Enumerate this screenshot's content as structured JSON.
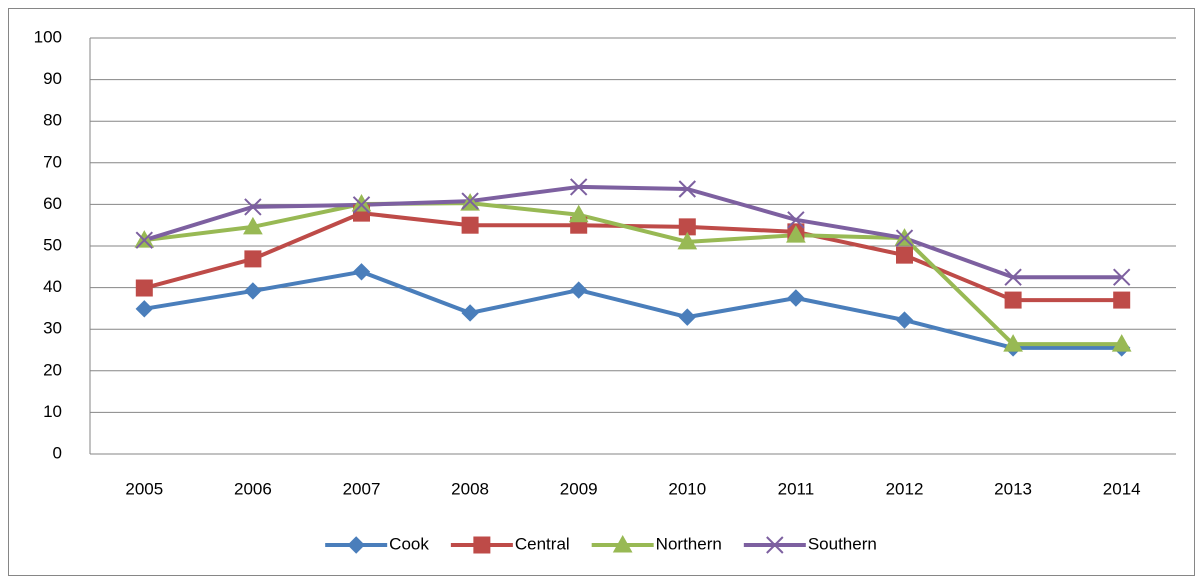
{
  "chart_data": {
    "type": "line",
    "categories": [
      "2005",
      "2006",
      "2007",
      "2008",
      "2009",
      "2010",
      "2011",
      "2012",
      "2013",
      "2014"
    ],
    "series": [
      {
        "name": "Cook",
        "color": "#4a7ebb",
        "marker": "diamond",
        "values": [
          34.9,
          39.2,
          43.8,
          33.9,
          39.4,
          32.9,
          37.5,
          32.2,
          25.5,
          25.5
        ]
      },
      {
        "name": "Central",
        "color": "#be4b48",
        "marker": "square",
        "values": [
          39.9,
          46.9,
          57.9,
          55.0,
          55.0,
          54.6,
          53.4,
          47.8,
          37.0,
          37.0
        ]
      },
      {
        "name": "Northern",
        "color": "#98b954",
        "marker": "triangle",
        "values": [
          51.4,
          54.6,
          60.1,
          60.3,
          57.5,
          51.0,
          52.6,
          51.9,
          26.4,
          26.4
        ]
      },
      {
        "name": "Southern",
        "color": "#7d60a0",
        "marker": "x",
        "values": [
          51.4,
          59.4,
          59.9,
          60.8,
          64.2,
          63.7,
          56.3,
          51.9,
          42.5,
          42.5
        ]
      }
    ],
    "ylim": [
      0,
      100
    ],
    "yticks": [
      0,
      10,
      20,
      30,
      40,
      50,
      60,
      70,
      80,
      90,
      100
    ],
    "grid": true,
    "legend": "bottom"
  }
}
